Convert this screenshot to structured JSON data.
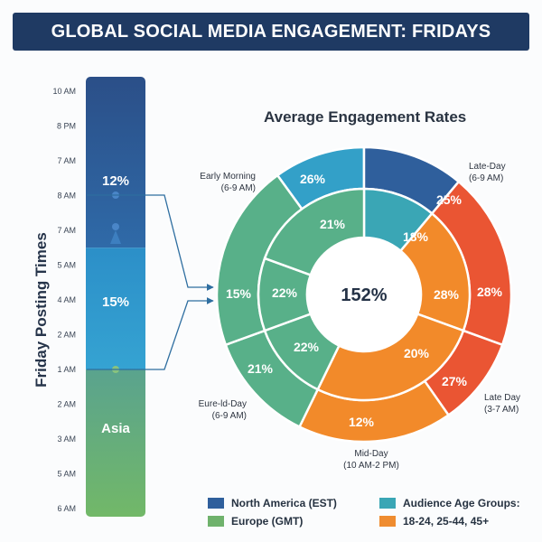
{
  "header": {
    "title": "GLOBAL SOCIAL MEDIA ENGAGEMENT: FRIDAYS"
  },
  "colors": {
    "north_america": "#2f5f9c",
    "europe": "#6fb26c",
    "audience": "#3aa6b5",
    "age_groups": "#ef8c30",
    "late_day": "#ea5533",
    "mid_day": "#f28a2a",
    "euro_day": "#58b089",
    "early_morning": "#33a0c8"
  },
  "chart_data": [
    {
      "type": "bar",
      "title": "",
      "ylabel": "Friday Posting Times",
      "time_ticks": [
        "10 AM",
        "8 PM",
        "7 AM",
        "8 AM",
        "7 AM",
        "5 AM",
        "4 AM",
        "2 AM",
        "1 AM",
        "2 AM",
        "3 AM",
        "5 AM",
        "6 AM"
      ],
      "segments": [
        {
          "name": "North America",
          "value_label": "12%",
          "from_tick": 0,
          "to_tick": 4.5,
          "color": "#2f5f9c"
        },
        {
          "name": "Audience",
          "value_label": "15%",
          "from_tick": 4.5,
          "to_tick": 8,
          "color": "#2f9ed2"
        },
        {
          "name": "Asia",
          "value_label": "Asia",
          "from_tick": 8,
          "to_tick": 12.2,
          "color": "#6fb26c"
        }
      ]
    },
    {
      "type": "pie",
      "title": "Average Engagement Rates",
      "center_label": "152%",
      "outer_ring": [
        {
          "label": "26%",
          "start_deg": -36,
          "end_deg": 0,
          "color": "#33a0c8"
        },
        {
          "label": "25%",
          "start_deg": 0,
          "end_deg": 40,
          "color": "#2f5f9c"
        },
        {
          "label": "28%",
          "start_deg": 40,
          "end_deg": 110,
          "color": "#ea5533"
        },
        {
          "label": "27%",
          "start_deg": 110,
          "end_deg": 145,
          "color": "#ea5533"
        },
        {
          "label": "12%",
          "start_deg": 145,
          "end_deg": 206,
          "color": "#f28a2a"
        },
        {
          "label": "21%",
          "start_deg": 206,
          "end_deg": 250,
          "color": "#58b089"
        },
        {
          "label": "15%",
          "start_deg": 250,
          "end_deg": 324,
          "color": "#58b089"
        }
      ],
      "inner_ring": [
        {
          "label": "18%",
          "start_deg": 0,
          "end_deg": 40,
          "color": "#3aa6b5"
        },
        {
          "label": "28%",
          "start_deg": 40,
          "end_deg": 110,
          "color": "#f28a2a"
        },
        {
          "label": "20%",
          "start_deg": 110,
          "end_deg": 206,
          "color": "#f28a2a"
        },
        {
          "label": "22%",
          "start_deg": 206,
          "end_deg": 250,
          "color": "#58b089"
        },
        {
          "label": "22%",
          "start_deg": 250,
          "end_deg": 290,
          "color": "#58b089"
        },
        {
          "label": "21%",
          "start_deg": 290,
          "end_deg": 360,
          "color": "#58b089"
        }
      ],
      "annotations": [
        {
          "line1": "Early Morning",
          "line2": "(6-9 AM)",
          "anchor": "end"
        },
        {
          "line1": "Late-Day",
          "line2": "(6-9 AM)",
          "anchor": "start"
        },
        {
          "line1": "Late Day",
          "line2": "(3-7 AM)",
          "anchor": "start"
        },
        {
          "line1": "Mid-Day",
          "line2": "(10 AM-2 PM)",
          "anchor": "middle"
        },
        {
          "line1": "Eure-ld-Day",
          "line2": "(6-9 AM)",
          "anchor": "end"
        }
      ]
    }
  ],
  "legend": {
    "north_america": "North America (EST)",
    "europe": "Europe (GMT)",
    "audience": "Audience Age Groups:",
    "age_groups": "18-24, 25-44, 45+"
  }
}
